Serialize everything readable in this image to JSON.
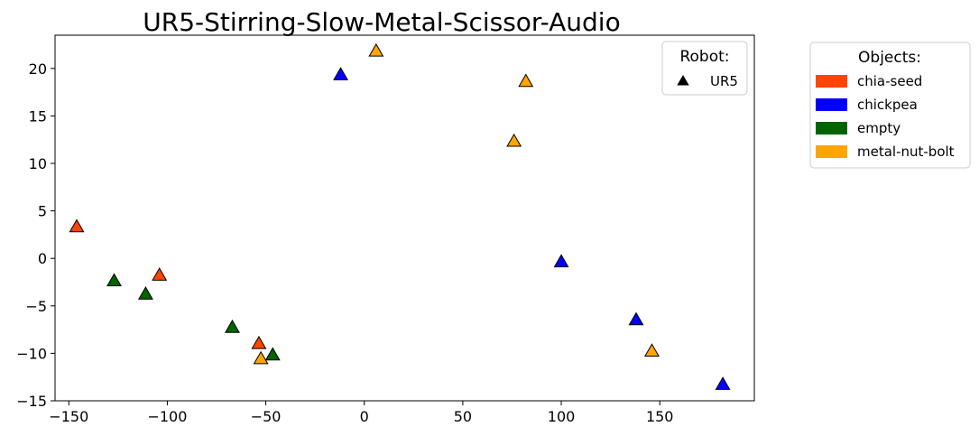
{
  "chart_data": {
    "type": "scatter",
    "title": "UR5-Stirring-Slow-Metal-Scissor-Audio",
    "xlabel": "",
    "ylabel": "",
    "xlim": [
      -157,
      198
    ],
    "ylim": [
      -15,
      23.5
    ],
    "x_ticks": [
      -150,
      -100,
      -50,
      0,
      50,
      100,
      150
    ],
    "y_ticks": [
      -15,
      -10,
      -5,
      0,
      5,
      10,
      15,
      20
    ],
    "x_tick_labels": [
      "−150",
      "−100",
      "−50",
      "0",
      "50",
      "100",
      "150"
    ],
    "y_tick_labels": [
      "−15",
      "−10",
      "−5",
      "0",
      "5",
      "10",
      "15",
      "20"
    ],
    "grid": false,
    "marker": "triangle-up",
    "robot_legend": {
      "title": "Robot:",
      "placement": "top-right inside plot",
      "entries": [
        {
          "label": "UR5",
          "marker": "triangle-up",
          "color": "#000000"
        }
      ]
    },
    "objects_legend": {
      "title": "Objects:",
      "placement": "right outside plot",
      "entries": [
        {
          "label": "chia-seed",
          "color": "#FF4500"
        },
        {
          "label": "chickpea",
          "color": "#0000FF"
        },
        {
          "label": "empty",
          "color": "#006400"
        },
        {
          "label": "metal-nut-bolt",
          "color": "#FFA500"
        }
      ]
    },
    "series": [
      {
        "category": "chia-seed",
        "color": "#FF4500",
        "points": [
          {
            "x": -146,
            "y": 3.3
          },
          {
            "x": -104,
            "y": -1.8
          },
          {
            "x": -53.5,
            "y": -9.0
          }
        ]
      },
      {
        "category": "chickpea",
        "color": "#0000FF",
        "points": [
          {
            "x": -12,
            "y": 19.3
          },
          {
            "x": 100,
            "y": -0.4
          },
          {
            "x": 138,
            "y": -6.5
          },
          {
            "x": 182,
            "y": -13.3
          }
        ]
      },
      {
        "category": "empty",
        "color": "#006400",
        "points": [
          {
            "x": -127,
            "y": -2.4
          },
          {
            "x": -111,
            "y": -3.8
          },
          {
            "x": -67,
            "y": -7.3
          },
          {
            "x": -46.5,
            "y": -10.2
          }
        ]
      },
      {
        "category": "metal-nut-bolt",
        "color": "#FFA500",
        "points": [
          {
            "x": 6,
            "y": 21.8
          },
          {
            "x": 82,
            "y": 18.6
          },
          {
            "x": 76,
            "y": 12.3
          },
          {
            "x": 146,
            "y": -9.8
          },
          {
            "x": -52.5,
            "y": -10.6
          }
        ]
      }
    ]
  }
}
